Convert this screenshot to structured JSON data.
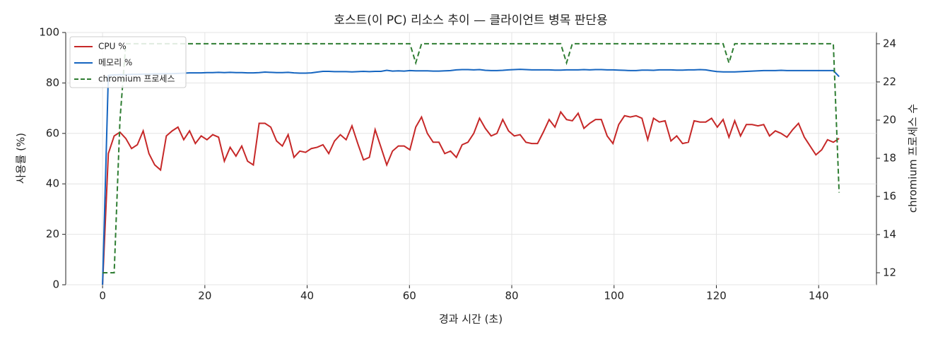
{
  "chart_data": {
    "type": "line",
    "title": "호스트(이 PC) 리소스 추이 — 클라이언트 병목 판단용",
    "x_label": "경과 시간 (초)",
    "y_label": "사용률 (%)",
    "y2_label": "chromium 프로세스 수",
    "x": [
      0,
      1.13,
      2.27,
      3.4,
      4.54,
      5.67,
      6.8,
      7.94,
      9.07,
      10.2,
      11.34,
      12.47,
      13.61,
      14.74,
      15.87,
      17.01,
      18.14,
      19.28,
      20.41,
      21.54,
      22.68,
      23.81,
      24.94,
      26.08,
      27.21,
      28.35,
      29.48,
      30.61,
      31.75,
      32.88,
      34.02,
      35.15,
      36.28,
      37.42,
      38.55,
      39.69,
      40.82,
      41.95,
      43.09,
      44.22,
      45.35,
      46.49,
      47.62,
      48.76,
      49.89,
      51.02,
      52.16,
      53.29,
      54.43,
      55.56,
      56.69,
      57.83,
      58.96,
      60.09,
      61.23,
      62.36,
      63.5,
      64.63,
      65.76,
      66.9,
      68.03,
      69.17,
      70.3,
      71.43,
      72.57,
      73.7,
      74.83,
      75.97,
      77.1,
      78.24,
      79.37,
      80.5,
      81.64,
      82.77,
      83.91,
      85.04,
      86.17,
      87.31,
      88.44,
      89.57,
      90.71,
      91.84,
      92.98,
      94.11,
      95.24,
      96.38,
      97.51,
      98.65,
      99.78,
      100.91,
      102.05,
      103.18,
      104.31,
      105.45,
      106.58,
      107.72,
      108.85,
      109.98,
      111.12,
      112.25,
      113.39,
      114.52,
      115.65,
      116.79,
      117.92,
      119.06,
      120.19,
      121.32,
      122.46,
      123.59,
      124.72,
      125.86,
      126.99,
      128.13,
      129.26,
      130.39,
      131.53,
      132.66,
      133.8,
      134.93,
      136.06,
      137.2,
      138.33,
      139.46,
      140.6,
      141.73,
      142.87,
      144
    ],
    "series": [
      {
        "name": "CPU %",
        "color": "#c62828",
        "linestyle": "solid",
        "axis": "y",
        "values": [
          0,
          52,
          59,
          60.5,
          58,
          54,
          55.5,
          61,
          52,
          47.5,
          45.5,
          59,
          61,
          62.5,
          57.5,
          61,
          56,
          59,
          57.5,
          59.5,
          58.5,
          49,
          54.5,
          51,
          55,
          49,
          47.5,
          64,
          64,
          62.5,
          57,
          55,
          59.5,
          50.5,
          53,
          52.5,
          54,
          54.5,
          55.5,
          52,
          57,
          59.5,
          57.5,
          63,
          56,
          49.5,
          50.5,
          61.5,
          54.5,
          47.5,
          53,
          55,
          55,
          53.5,
          62.5,
          66.5,
          60,
          56.5,
          56.5,
          52,
          53,
          50.5,
          55.5,
          56.5,
          60,
          66,
          62,
          59,
          60,
          65.5,
          61,
          59,
          59.5,
          56.5,
          56,
          56,
          60.5,
          65.5,
          62.5,
          68.5,
          65.5,
          65,
          68,
          62,
          64,
          65.5,
          65.5,
          59,
          56,
          63.5,
          67,
          66.5,
          67,
          66,
          57.5,
          66,
          64.5,
          65,
          57,
          59,
          56,
          56.5,
          65,
          64.5,
          64.5,
          66,
          62.5,
          65.5,
          58.5,
          65,
          59,
          63.5,
          63.5,
          63,
          63.5,
          59,
          61,
          60,
          58.5,
          61.5,
          64,
          58.5,
          55,
          51.5,
          53.5,
          57.5,
          56.5,
          58
        ]
      },
      {
        "name": "메모리 %",
        "color": "#1565c0",
        "linestyle": "solid",
        "axis": "y",
        "values": [
          0,
          83,
          83.2,
          83.3,
          83.3,
          83.4,
          83.4,
          83.5,
          83.5,
          83.6,
          83.6,
          83.7,
          83.7,
          83.8,
          83.9,
          84,
          84,
          84,
          84.1,
          84.1,
          84.2,
          84.1,
          84.2,
          84.1,
          84.1,
          84,
          84,
          84.1,
          84.3,
          84.2,
          84.1,
          84.1,
          84.2,
          84,
          83.9,
          83.9,
          84,
          84.3,
          84.6,
          84.6,
          84.5,
          84.5,
          84.5,
          84.4,
          84.5,
          84.6,
          84.5,
          84.6,
          84.6,
          85,
          84.7,
          84.8,
          84.7,
          84.9,
          84.8,
          84.8,
          84.8,
          84.7,
          84.7,
          84.8,
          84.9,
          85.2,
          85.3,
          85.3,
          85.2,
          85.3,
          85,
          84.9,
          84.9,
          85,
          85.2,
          85.3,
          85.4,
          85.3,
          85.2,
          85.2,
          85.2,
          85.2,
          85.1,
          85.1,
          85.2,
          85.2,
          85.2,
          85.3,
          85.2,
          85.3,
          85.3,
          85.2,
          85.2,
          85.1,
          85,
          84.9,
          84.9,
          85.1,
          85.1,
          85,
          85.2,
          85.2,
          85.2,
          85.1,
          85.1,
          85.2,
          85.2,
          85.3,
          85.2,
          84.8,
          84.5,
          84.4,
          84.4,
          84.4,
          84.5,
          84.6,
          84.7,
          84.8,
          84.9,
          84.9,
          84.9,
          85,
          84.9,
          84.9,
          84.9,
          84.9,
          84.9,
          84.9,
          84.9,
          84.9,
          84.9,
          82.5
        ]
      },
      {
        "name": "chromium 프로세스",
        "color": "#2e7d32",
        "linestyle": "dashed",
        "axis": "y2",
        "values": [
          12,
          12,
          12,
          20,
          24,
          24,
          24,
          24,
          24,
          24,
          24,
          24,
          24,
          24,
          24,
          24,
          24,
          24,
          24,
          24,
          24,
          24,
          24,
          24,
          24,
          24,
          24,
          24,
          24,
          24,
          24,
          24,
          24,
          24,
          24,
          24,
          24,
          24,
          24,
          24,
          24,
          24,
          24,
          24,
          24,
          24,
          24,
          24,
          24,
          24,
          24,
          24,
          24,
          24,
          23,
          24,
          24,
          24,
          24,
          24,
          24,
          24,
          24,
          24,
          24,
          24,
          24,
          24,
          24,
          24,
          24,
          24,
          24,
          24,
          24,
          24,
          24,
          24,
          24,
          24,
          23,
          24,
          24,
          24,
          24,
          24,
          24,
          24,
          24,
          24,
          24,
          24,
          24,
          24,
          24,
          24,
          24,
          24,
          24,
          24,
          24,
          24,
          24,
          24,
          24,
          24,
          24,
          24,
          23,
          24,
          24,
          24,
          24,
          24,
          24,
          24,
          24,
          24,
          24,
          24,
          24,
          24,
          24,
          24,
          24,
          24,
          24,
          16.2
        ]
      }
    ],
    "xlim": [
      -7.2,
      151.3
    ],
    "xticks": [
      0,
      20,
      40,
      60,
      80,
      100,
      120,
      140
    ],
    "ylim": [
      0,
      100
    ],
    "yticks": [
      0,
      20,
      40,
      60,
      80,
      100
    ],
    "y2lim": [
      11.37,
      24.59
    ],
    "y2ticks": [
      12,
      14,
      16,
      18,
      20,
      22,
      24
    ],
    "grid": true,
    "legend": "upper-left"
  }
}
